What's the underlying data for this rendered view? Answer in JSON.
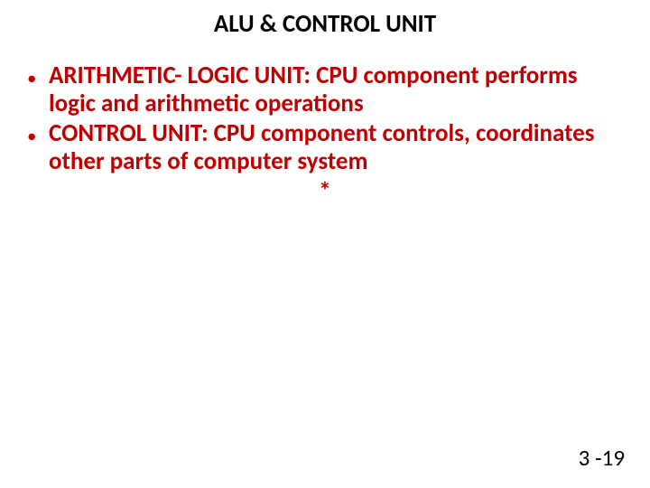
{
  "title": {
    "text": "ALU & CONTROL UNIT",
    "color": "#000000",
    "fontsize": 27,
    "fontweight": 700
  },
  "bullets": {
    "color": "#c00000",
    "fontsize": 27,
    "lineheight": 1.15,
    "dot": "•",
    "items": [
      {
        "bold": "ARITHMETIC- LOGIC UNIT: CPU component performs logic and arithmetic operations"
      },
      {
        "bold": "CONTROL UNIT: CPU component controls, coordinates other parts of computer system"
      }
    ],
    "asterisk": "*"
  },
  "pagenum": {
    "text": "3 -19",
    "color": "#000000",
    "fontsize": 25
  },
  "background": "#ffffff"
}
